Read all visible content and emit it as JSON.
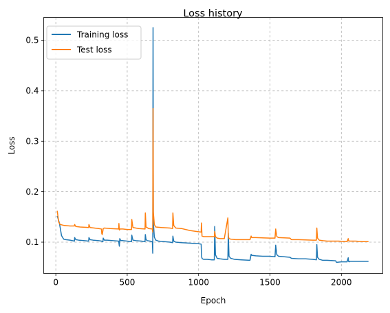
{
  "chart_data": {
    "type": "line",
    "title": "Loss history",
    "xlabel": "Epoch",
    "ylabel": "Loss",
    "xlim": [
      -85,
      2290
    ],
    "ylim": [
      0.038,
      0.545
    ],
    "x_ticks": [
      0,
      500,
      1000,
      1500,
      2000
    ],
    "y_ticks": [
      0.1,
      0.2,
      0.3,
      0.4,
      0.5
    ],
    "x_tick_labels": [
      "0",
      "500",
      "1000",
      "1500",
      "2000"
    ],
    "y_tick_labels": [
      "0.1",
      "0.2",
      "0.3",
      "0.4",
      "0.5"
    ],
    "grid": true,
    "legend_position": "upper-left",
    "series": [
      {
        "name": "Training loss",
        "color": "#1f77b4",
        "x": [
          10,
          25,
          40,
          55,
          70,
          100,
          130,
          132,
          140,
          160,
          200,
          230,
          232,
          240,
          260,
          300,
          320,
          330,
          332,
          340,
          360,
          400,
          440,
          445,
          448,
          455,
          470,
          500,
          530,
          532,
          540,
          560,
          600,
          625,
          627,
          632,
          640,
          660,
          676,
          679,
          681,
          683,
          690,
          700,
          720,
          760,
          800,
          818,
          820,
          826,
          840,
          880,
          940,
          1000,
          1018,
          1020,
          1022,
          1026,
          1035,
          1060,
          1090,
          1110,
          1113,
          1118,
          1130,
          1150,
          1180,
          1205,
          1208,
          1213,
          1225,
          1250,
          1300,
          1360,
          1368,
          1372,
          1400,
          1450,
          1500,
          1535,
          1540,
          1548,
          1560,
          1600,
          1640,
          1650,
          1700,
          1750,
          1800,
          1825,
          1828,
          1833,
          1845,
          1870,
          1900,
          1960,
          1966,
          2000,
          2040,
          2048,
          2050,
          2055,
          2060,
          2100,
          2150,
          2190
        ],
        "y": [
          0.152,
          0.138,
          0.113,
          0.106,
          0.105,
          0.104,
          0.102,
          0.109,
          0.105,
          0.104,
          0.103,
          0.102,
          0.109,
          0.105,
          0.104,
          0.103,
          0.102,
          0.101,
          0.108,
          0.104,
          0.104,
          0.103,
          0.102,
          0.092,
          0.107,
          0.103,
          0.103,
          0.102,
          0.101,
          0.114,
          0.104,
          0.103,
          0.102,
          0.101,
          0.115,
          0.105,
          0.103,
          0.102,
          0.101,
          0.078,
          0.525,
          0.14,
          0.11,
          0.104,
          0.102,
          0.101,
          0.1,
          0.099,
          0.112,
          0.102,
          0.1,
          0.099,
          0.098,
          0.097,
          0.096,
          0.078,
          0.07,
          0.067,
          0.066,
          0.066,
          0.065,
          0.065,
          0.131,
          0.075,
          0.068,
          0.067,
          0.066,
          0.066,
          0.118,
          0.072,
          0.068,
          0.066,
          0.065,
          0.064,
          0.076,
          0.074,
          0.073,
          0.072,
          0.072,
          0.071,
          0.094,
          0.075,
          0.072,
          0.071,
          0.07,
          0.068,
          0.067,
          0.067,
          0.066,
          0.065,
          0.095,
          0.07,
          0.066,
          0.064,
          0.064,
          0.063,
          0.06,
          0.061,
          0.061,
          0.069,
          0.062,
          0.061,
          0.062,
          0.062,
          0.062,
          0.062
        ]
      },
      {
        "name": "Test loss",
        "color": "#ff7f0e",
        "x": [
          10,
          20,
          30,
          45,
          60,
          100,
          130,
          132,
          140,
          170,
          230,
          232,
          240,
          270,
          300,
          320,
          322,
          325,
          330,
          332,
          340,
          380,
          440,
          442,
          445,
          450,
          470,
          500,
          530,
          532,
          540,
          580,
          625,
          627,
          632,
          650,
          676,
          679,
          681,
          683,
          690,
          700,
          740,
          800,
          818,
          820,
          826,
          840,
          880,
          940,
          990,
          1018,
          1020,
          1024,
          1035,
          1060,
          1100,
          1110,
          1113,
          1118,
          1130,
          1150,
          1180,
          1205,
          1208,
          1213,
          1225,
          1260,
          1300,
          1360,
          1368,
          1372,
          1400,
          1500,
          1535,
          1540,
          1548,
          1560,
          1640,
          1650,
          1700,
          1800,
          1825,
          1828,
          1833,
          1845,
          1870,
          1900,
          1980,
          2040,
          2048,
          2050,
          2060,
          2100,
          2150,
          2190
        ],
        "y": [
          0.162,
          0.14,
          0.135,
          0.134,
          0.133,
          0.132,
          0.132,
          0.135,
          0.131,
          0.13,
          0.129,
          0.135,
          0.129,
          0.128,
          0.127,
          0.126,
          0.117,
          0.115,
          0.123,
          0.127,
          0.128,
          0.127,
          0.126,
          0.137,
          0.124,
          0.126,
          0.126,
          0.125,
          0.125,
          0.145,
          0.129,
          0.127,
          0.126,
          0.158,
          0.13,
          0.127,
          0.126,
          0.12,
          0.365,
          0.16,
          0.135,
          0.13,
          0.129,
          0.128,
          0.127,
          0.158,
          0.133,
          0.128,
          0.127,
          0.123,
          0.121,
          0.12,
          0.138,
          0.112,
          0.111,
          0.111,
          0.111,
          0.111,
          0.121,
          0.111,
          0.108,
          0.107,
          0.107,
          0.148,
          0.112,
          0.107,
          0.106,
          0.105,
          0.105,
          0.105,
          0.112,
          0.109,
          0.109,
          0.108,
          0.108,
          0.126,
          0.111,
          0.109,
          0.108,
          0.105,
          0.105,
          0.104,
          0.104,
          0.128,
          0.108,
          0.104,
          0.103,
          0.102,
          0.102,
          0.101,
          0.107,
          0.103,
          0.102,
          0.102,
          0.101,
          0.101
        ]
      }
    ]
  }
}
